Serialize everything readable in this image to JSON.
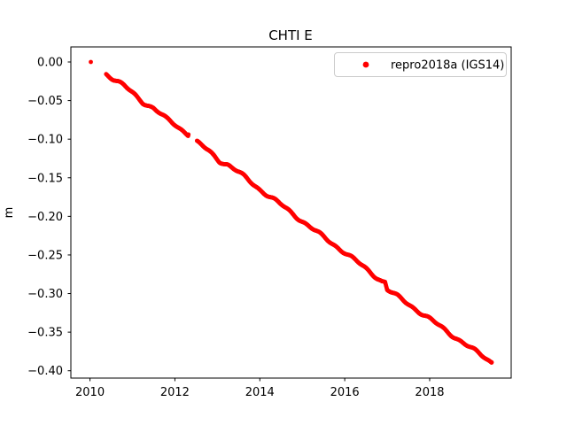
{
  "window": {
    "background": "#ffffff"
  },
  "chart_data": {
    "type": "scatter",
    "title": "CHTI E",
    "xlabel": "",
    "ylabel": "m",
    "xlim": [
      2009.55,
      2019.92
    ],
    "ylim": [
      -0.4095,
      0.0195
    ],
    "xtick_values": [
      2010,
      2012,
      2014,
      2016,
      2018
    ],
    "xtick_labels": [
      "2010",
      "2012",
      "2014",
      "2016",
      "2018"
    ],
    "ytick_values": [
      0.0,
      -0.05,
      -0.1,
      -0.15,
      -0.2,
      -0.25,
      -0.3,
      -0.35,
      -0.4
    ],
    "ytick_labels": [
      "0.00",
      "−0.05",
      "−0.10",
      "−0.15",
      "−0.20",
      "−0.25",
      "−0.30",
      "−0.35",
      "−0.40"
    ],
    "grid": false,
    "axes_color": "#000000",
    "legend": {
      "label": "repro2018a (IGS14)",
      "position": "upper right",
      "border_color": "#cccccc",
      "background": "#ffffff",
      "marker_color": "#ff0000"
    },
    "series": [
      {
        "name": "repro2018a (IGS14)",
        "color": "#ff0000",
        "marker": "dot",
        "segments": [
          [
            [
              2010.02,
              0.0
            ]
          ],
          [
            [
              2010.38,
              -0.015
            ],
            [
              2010.55,
              -0.022
            ],
            [
              2010.8,
              -0.031
            ],
            [
              2011.0,
              -0.04
            ],
            [
              2011.25,
              -0.052
            ],
            [
              2011.5,
              -0.06
            ],
            [
              2011.8,
              -0.074
            ],
            [
              2012.0,
              -0.081
            ],
            [
              2012.32,
              -0.094
            ]
          ],
          [
            [
              2012.52,
              -0.104
            ],
            [
              2012.8,
              -0.1155
            ],
            [
              2013.05,
              -0.128
            ],
            [
              2013.25,
              -0.133
            ],
            [
              2013.5,
              -0.143
            ],
            [
              2014.0,
              -0.165
            ],
            [
              2014.5,
              -0.185
            ],
            [
              2015.0,
              -0.206
            ],
            [
              2015.5,
              -0.227
            ],
            [
              2016.0,
              -0.2465
            ],
            [
              2016.5,
              -0.268
            ],
            [
              2016.88,
              -0.284
            ],
            [
              2016.95,
              -0.285
            ],
            [
              2017.0,
              -0.295
            ],
            [
              2017.5,
              -0.3135
            ],
            [
              2018.0,
              -0.333
            ],
            [
              2018.5,
              -0.3525
            ],
            [
              2019.0,
              -0.372
            ],
            [
              2019.25,
              -0.381
            ],
            [
              2019.46,
              -0.389
            ]
          ]
        ]
      }
    ]
  }
}
